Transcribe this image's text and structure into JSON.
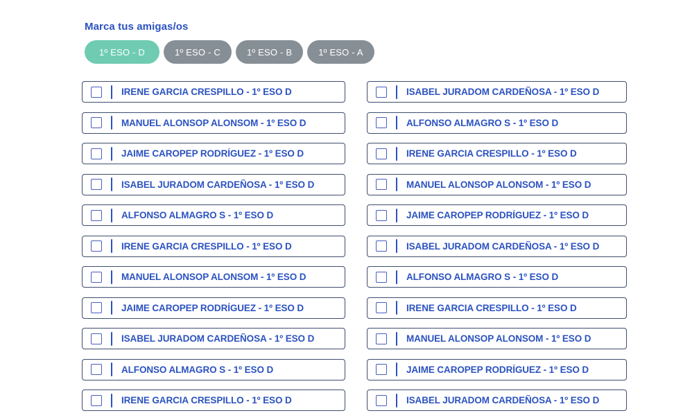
{
  "page_title": "Marca tus amigas/os",
  "colors": {
    "accent_blue": "#2b52c0",
    "selected_pill_green": "#6fccb2",
    "pill_gray": "#878f96",
    "row_border": "#3e4c6d",
    "checkbox_border": "#4a5dbe",
    "background": "#ffffff"
  },
  "class_filters": [
    {
      "label": "1º ESO - D",
      "selected": true
    },
    {
      "label": "1º ESO - C",
      "selected": false
    },
    {
      "label": "1º ESO - B",
      "selected": false
    },
    {
      "label": "1º ESO - A",
      "selected": false
    }
  ],
  "students": {
    "left_column": [
      {
        "label": "IRENE GARCIA CRESPILLO - 1º ESO D",
        "checked": false
      },
      {
        "label": "MANUEL ALONSOP ALONSOM - 1º ESO D",
        "checked": false
      },
      {
        "label": "JAIME CAROPEP RODRÍGUEZ - 1º ESO D",
        "checked": false
      },
      {
        "label": "ISABEL JURADOM CARDEÑOSA - 1º ESO D",
        "checked": false
      },
      {
        "label": "ALFONSO ALMAGRO S - 1º ESO D",
        "checked": false
      },
      {
        "label": "IRENE GARCIA CRESPILLO - 1º ESO D",
        "checked": false
      },
      {
        "label": "MANUEL ALONSOP ALONSOM - 1º ESO D",
        "checked": false
      },
      {
        "label": "JAIME CAROPEP RODRÍGUEZ - 1º ESO D",
        "checked": false
      },
      {
        "label": "ISABEL JURADOM CARDEÑOSA - 1º ESO D",
        "checked": false
      },
      {
        "label": "ALFONSO ALMAGRO S - 1º ESO D",
        "checked": false
      },
      {
        "label": "IRENE GARCIA CRESPILLO - 1º ESO D",
        "checked": false
      }
    ],
    "right_column": [
      {
        "label": "ISABEL JURADOM CARDEÑOSA - 1º ESO D",
        "checked": false
      },
      {
        "label": "ALFONSO ALMAGRO S - 1º ESO D",
        "checked": false
      },
      {
        "label": "IRENE GARCIA CRESPILLO - 1º ESO D",
        "checked": false
      },
      {
        "label": "MANUEL ALONSOP ALONSOM - 1º ESO D",
        "checked": false
      },
      {
        "label": "JAIME CAROPEP RODRÍGUEZ - 1º ESO D",
        "checked": false
      },
      {
        "label": "ISABEL JURADOM CARDEÑOSA - 1º ESO D",
        "checked": false
      },
      {
        "label": "ALFONSO ALMAGRO S - 1º ESO D",
        "checked": false
      },
      {
        "label": "IRENE GARCIA CRESPILLO - 1º ESO D",
        "checked": false
      },
      {
        "label": "MANUEL ALONSOP ALONSOM - 1º ESO D",
        "checked": false
      },
      {
        "label": "JAIME CAROPEP RODRÍGUEZ - 1º ESO D",
        "checked": false
      },
      {
        "label": "ISABEL JURADOM CARDEÑOSA - 1º ESO D",
        "checked": false
      }
    ]
  }
}
